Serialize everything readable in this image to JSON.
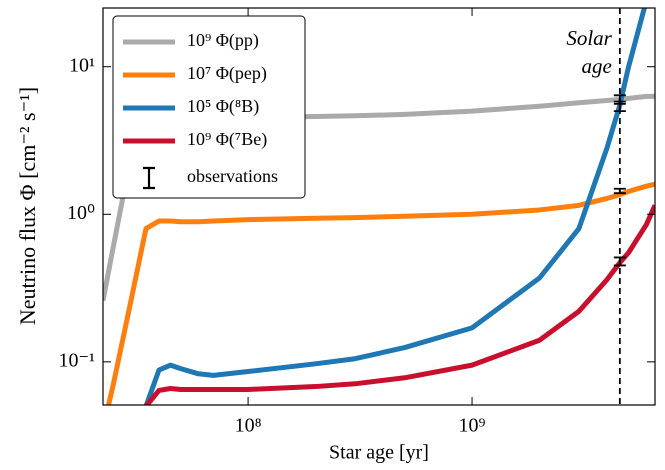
{
  "chart_data": {
    "type": "line",
    "xlabel": "Star age [yr]",
    "ylabel": "Neutrino flux Φ [cm⁻² s⁻¹]",
    "xscale": "log",
    "yscale": "log",
    "xlim": [
      22500000.0,
      6560000000.0
    ],
    "ylim": [
      0.051,
      25
    ],
    "xticks": [
      {
        "value": 100000000.0,
        "label": "10⁸"
      },
      {
        "value": 1000000000.0,
        "label": "10⁹"
      }
    ],
    "yticks": [
      {
        "value": 0.1,
        "label": "10⁻¹"
      },
      {
        "value": 1,
        "label": "10⁰"
      },
      {
        "value": 10,
        "label": "10¹"
      }
    ],
    "legend": "upper left",
    "x": [
      22500000.0,
      25000000.0,
      30000000.0,
      35000000.0,
      40000000.0,
      45000000.0,
      50000000.0,
      60000000.0,
      70000000.0,
      100000000.0,
      200000000.0,
      300000000.0,
      500000000.0,
      1000000000.0,
      2000000000.0,
      3000000000.0,
      4000000000.0,
      4570000000.0,
      5000000000.0,
      6000000000.0,
      6560000000.0
    ],
    "series": [
      {
        "name": "10⁹ Φ(pp)",
        "color": "#aaaaaa",
        "values": [
          0.26,
          0.6,
          2.5,
          4.2,
          4.5,
          4.5,
          4.5,
          4.5,
          4.5,
          4.55,
          4.6,
          4.65,
          4.75,
          5.0,
          5.4,
          5.7,
          5.9,
          6.0,
          6.1,
          6.3,
          6.3
        ]
      },
      {
        "name": "10⁷ Φ(pep)",
        "color": "#ff7f0e",
        "values": [
          0.035,
          0.07,
          0.26,
          0.8,
          0.9,
          0.9,
          0.89,
          0.89,
          0.9,
          0.92,
          0.94,
          0.95,
          0.97,
          1.0,
          1.07,
          1.15,
          1.28,
          1.36,
          1.43,
          1.55,
          1.6
        ]
      },
      {
        "name": "10⁵ Φ(⁸B)",
        "color": "#1f77b4",
        "values": [
          null,
          null,
          null,
          0.05,
          0.088,
          0.095,
          0.09,
          0.083,
          0.081,
          0.086,
          0.097,
          0.105,
          0.125,
          0.17,
          0.37,
          0.8,
          2.8,
          5.5,
          10,
          28,
          45
        ]
      },
      {
        "name": "10⁹ Φ(⁷Be)",
        "color": "#c8102e",
        "values": [
          null,
          null,
          null,
          0.05,
          0.064,
          0.066,
          0.065,
          0.065,
          0.065,
          0.065,
          0.068,
          0.071,
          0.078,
          0.095,
          0.14,
          0.22,
          0.36,
          0.47,
          0.55,
          0.85,
          1.15
        ]
      }
    ],
    "observations": {
      "name": "observations",
      "color": "#000000",
      "x": [
        4570000000.0,
        4570000000.0,
        4570000000.0,
        4570000000.0
      ],
      "values": [
        6.1,
        5.3,
        1.44,
        0.48
      ],
      "errors": [
        0.3,
        0.3,
        0.05,
        0.03
      ]
    },
    "vline_x": 4570000000.0,
    "annotation": [
      "Solar",
      "age"
    ]
  }
}
